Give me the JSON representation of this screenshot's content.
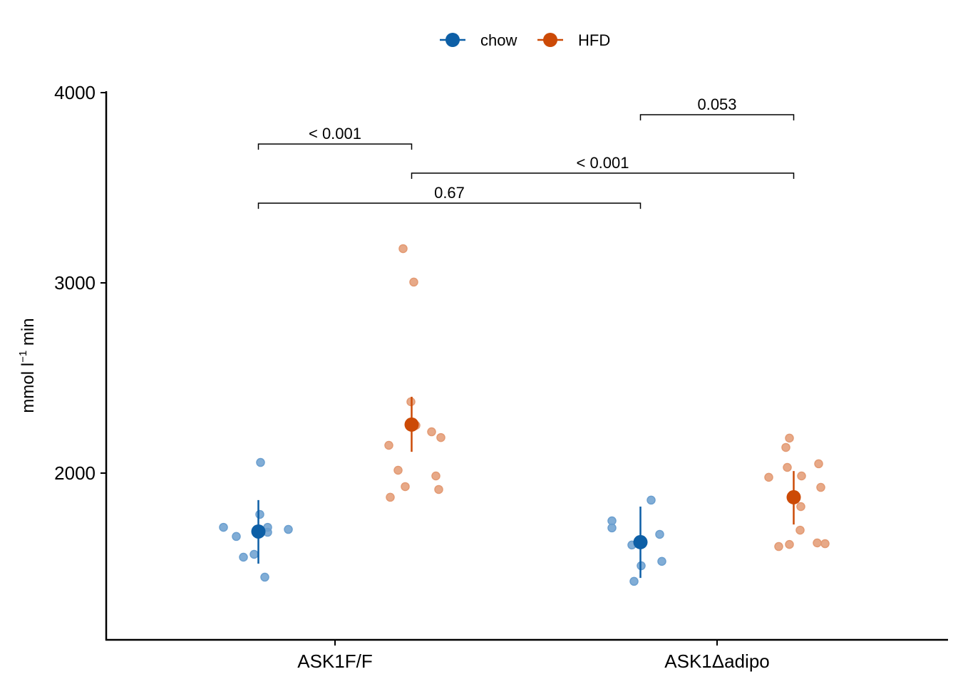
{
  "chart_data": {
    "type": "scatter",
    "title": "",
    "xlabel": "",
    "ylabel": "mmol l",
    "ylabel_superscript": "−1",
    "ylabel_suffix": " min",
    "ylim": [
      1120,
      4000
    ],
    "yticks": [
      2000,
      3000,
      4000
    ],
    "ytick_labels": [
      "2000",
      "3000",
      "4000"
    ],
    "categories": [
      "ASK1F/F",
      "ASK1Δadipo"
    ],
    "legend": {
      "position": "top",
      "entries": [
        "chow",
        "HFD"
      ]
    },
    "colors": {
      "chow": "#0D5FA6",
      "HFD": "#CC4A06",
      "chow_point": "#6B9FCF",
      "HFD_point": "#E39A73"
    },
    "series": [
      {
        "name": "chow",
        "groups": [
          {
            "category": "ASK1F/F",
            "points": [
              2056,
              1783,
              1715,
              1689,
              1715,
              1667,
              1704,
              1573,
              1558,
              1453
            ],
            "mean": 1693,
            "lower": 1524,
            "upper": 1858
          },
          {
            "category": "ASK1Δadipo",
            "points": [
              1858,
              1749,
              1712,
              1678,
              1622,
              1536,
              1513,
              1431
            ],
            "mean": 1637,
            "lower": 1449,
            "upper": 1824
          }
        ]
      },
      {
        "name": "HFD",
        "groups": [
          {
            "category": "ASK1F/F",
            "points": [
              3180,
              3004,
              2375,
              2251,
              2217,
              2187,
              2146,
              2015,
              1985,
              1929,
              1914,
              1873
            ],
            "mean": 2255,
            "lower": 2112,
            "upper": 2401
          },
          {
            "category": "ASK1Δadipo",
            "points": [
              2184,
              2135,
              2049,
              2030,
              1978,
              1985,
              1925,
              1824,
              1700,
              1625,
              1614,
              1633,
              1629
            ],
            "mean": 1873,
            "lower": 1730,
            "upper": 2011
          }
        ]
      }
    ],
    "annotations": [
      {
        "label": "0.053",
        "from": "ASK1Δadipo/chow",
        "to": "ASK1Δadipo/HFD",
        "y": 3884
      },
      {
        "label": "< 0.001",
        "from": "ASK1F/F/chow",
        "to": "ASK1F/F/HFD",
        "y": 3730
      },
      {
        "label": "< 0.001",
        "from": "ASK1F/F/HFD",
        "to": "ASK1Δadipo/HFD",
        "y": 3577
      },
      {
        "label": "0.67",
        "from": "ASK1F/F/chow",
        "to": "ASK1Δadipo/chow",
        "y": 3419
      }
    ]
  }
}
